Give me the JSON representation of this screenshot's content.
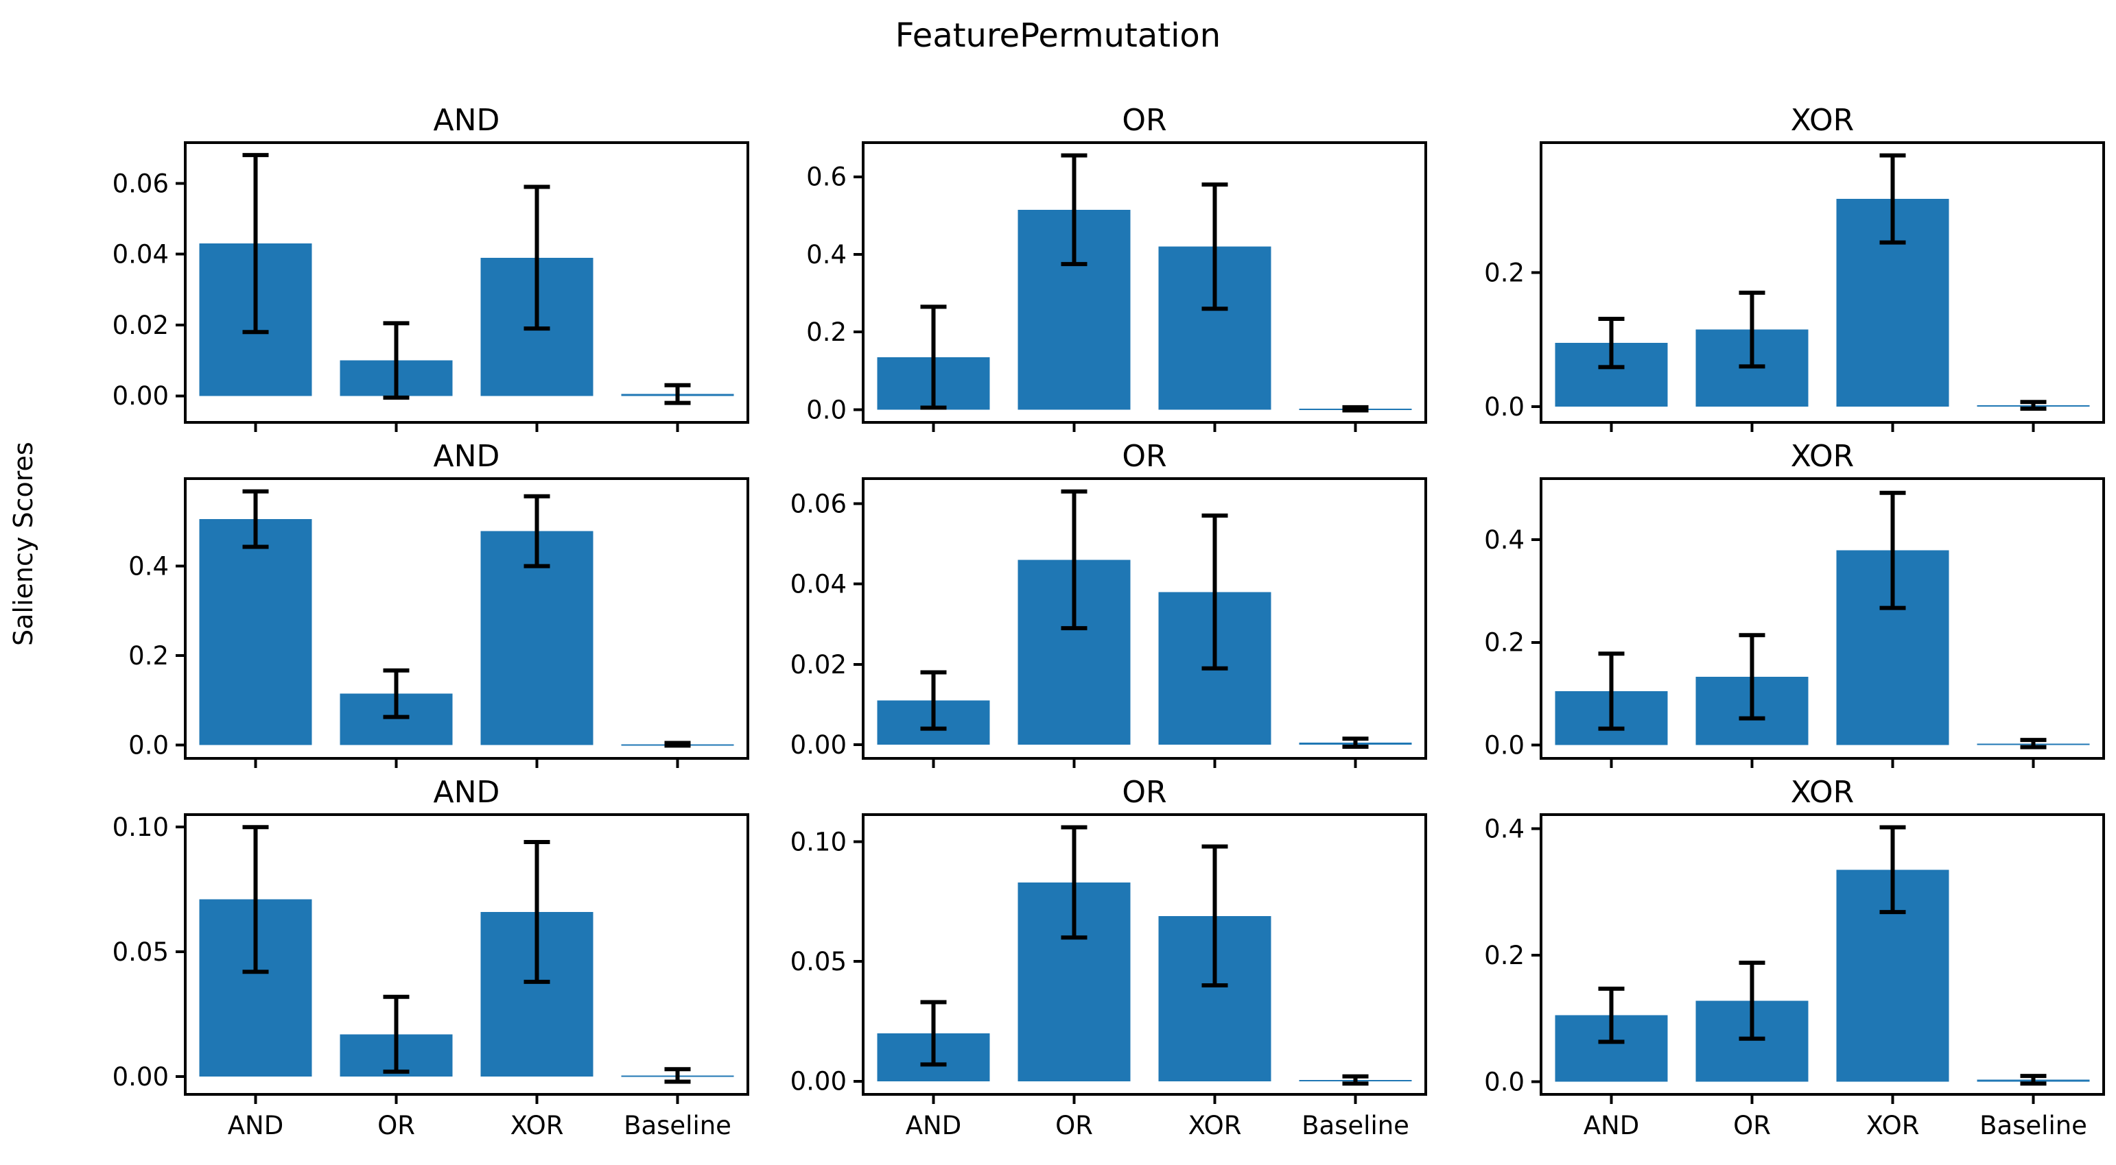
{
  "chart_data": {
    "type": "bar",
    "suptitle": "FeaturePermutation",
    "ylabel": "Saliency Scores",
    "categories": [
      "AND",
      "OR",
      "XOR",
      "Baseline"
    ],
    "grid": {
      "rows": 3,
      "cols": 3
    },
    "legend": "none",
    "grid_lines": false,
    "colors": {
      "bar": "#1f77b4",
      "error": "#000000",
      "text": "#000000",
      "background": "#ffffff"
    },
    "subplots": [
      {
        "row": 0,
        "col": 0,
        "title": "AND",
        "values": [
          0.043,
          0.01,
          0.039,
          0.0005
        ],
        "errors": [
          0.025,
          0.0105,
          0.02,
          0.0025
        ],
        "yticks": [
          0.0,
          0.02,
          0.04,
          0.06
        ],
        "ytick_labels": [
          "0.00",
          "0.02",
          "0.04",
          "0.06"
        ],
        "ylim": [
          -0.0075,
          0.0715
        ]
      },
      {
        "row": 0,
        "col": 1,
        "title": "OR",
        "values": [
          0.135,
          0.515,
          0.42,
          0.002
        ],
        "errors": [
          0.13,
          0.14,
          0.16,
          0.004
        ],
        "yticks": [
          0.0,
          0.2,
          0.4,
          0.6
        ],
        "ytick_labels": [
          "0.0",
          "0.2",
          "0.4",
          "0.6"
        ],
        "ylim": [
          -0.033,
          0.688
        ]
      },
      {
        "row": 0,
        "col": 2,
        "title": "XOR",
        "values": [
          0.095,
          0.115,
          0.31,
          0.002
        ],
        "errors": [
          0.036,
          0.055,
          0.065,
          0.005
        ],
        "yticks": [
          0.0,
          0.2
        ],
        "ytick_labels": [
          "0.0",
          "0.2"
        ],
        "ylim": [
          -0.0235,
          0.394
        ]
      },
      {
        "row": 1,
        "col": 0,
        "title": "AND",
        "values": [
          0.505,
          0.115,
          0.478,
          0.002
        ],
        "errors": [
          0.062,
          0.052,
          0.078,
          0.003
        ],
        "yticks": [
          0.0,
          0.2,
          0.4
        ],
        "ytick_labels": [
          "0.0",
          "0.2",
          "0.4"
        ],
        "ylim": [
          -0.0295,
          0.5955
        ]
      },
      {
        "row": 1,
        "col": 1,
        "title": "OR",
        "values": [
          0.011,
          0.046,
          0.038,
          0.0005
        ],
        "errors": [
          0.007,
          0.017,
          0.019,
          0.001
        ],
        "yticks": [
          0.0,
          0.02,
          0.04,
          0.06
        ],
        "ytick_labels": [
          "0.00",
          "0.02",
          "0.04",
          "0.06"
        ],
        "ylim": [
          -0.0034,
          0.0662
        ]
      },
      {
        "row": 1,
        "col": 2,
        "title": "XOR",
        "values": [
          0.105,
          0.133,
          0.379,
          0.003
        ],
        "errors": [
          0.073,
          0.081,
          0.112,
          0.007
        ],
        "yticks": [
          0.0,
          0.2,
          0.4
        ],
        "ytick_labels": [
          "0.0",
          "0.2",
          "0.4"
        ],
        "ylim": [
          -0.0259,
          0.5187
        ]
      },
      {
        "row": 2,
        "col": 0,
        "title": "AND",
        "values": [
          0.071,
          0.017,
          0.066,
          0.0005
        ],
        "errors": [
          0.029,
          0.015,
          0.028,
          0.0025
        ],
        "yticks": [
          0.0,
          0.05,
          0.1
        ],
        "ytick_labels": [
          "0.00",
          "0.05",
          "0.10"
        ],
        "ylim": [
          -0.0071,
          0.105
        ]
      },
      {
        "row": 2,
        "col": 1,
        "title": "OR",
        "values": [
          0.02,
          0.083,
          0.069,
          0.0005
        ],
        "errors": [
          0.013,
          0.023,
          0.029,
          0.0015
        ],
        "yticks": [
          0.0,
          0.05,
          0.1
        ],
        "ytick_labels": [
          "0.00",
          "0.05",
          "0.10"
        ],
        "ylim": [
          -0.0055,
          0.1113
        ]
      },
      {
        "row": 2,
        "col": 2,
        "title": "XOR",
        "values": [
          0.105,
          0.128,
          0.335,
          0.003
        ],
        "errors": [
          0.042,
          0.06,
          0.067,
          0.006
        ],
        "yticks": [
          0.0,
          0.2,
          0.4
        ],
        "ytick_labels": [
          "0.0",
          "0.2",
          "0.4"
        ],
        "ylim": [
          -0.0201,
          0.4221
        ]
      }
    ]
  }
}
